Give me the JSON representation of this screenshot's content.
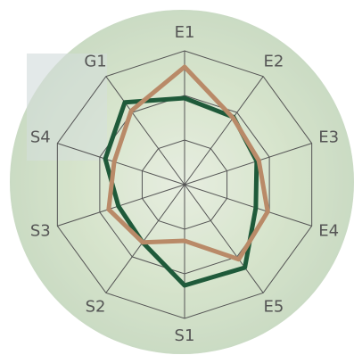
{
  "chart_data": {
    "type": "radar",
    "categories": [
      "E1",
      "E2",
      "E3",
      "E4",
      "E5",
      "S1",
      "S2",
      "S3",
      "S4",
      "G1"
    ],
    "series": [
      {
        "color": "#1f5a3a",
        "values": [
          1.94,
          1.87,
          1.7,
          1.68,
          2.3,
          2.26,
          1.6,
          1.56,
          1.87,
          2.28
        ]
      },
      {
        "color": "#b98a68",
        "values": [
          2.64,
          1.85,
          1.75,
          1.96,
          2.07,
          1.26,
          1.6,
          1.79,
          1.66,
          2.04
        ]
      }
    ],
    "ylim": [
      0,
      3
    ],
    "yticks": [
      1,
      2,
      3
    ],
    "grid": true
  }
}
